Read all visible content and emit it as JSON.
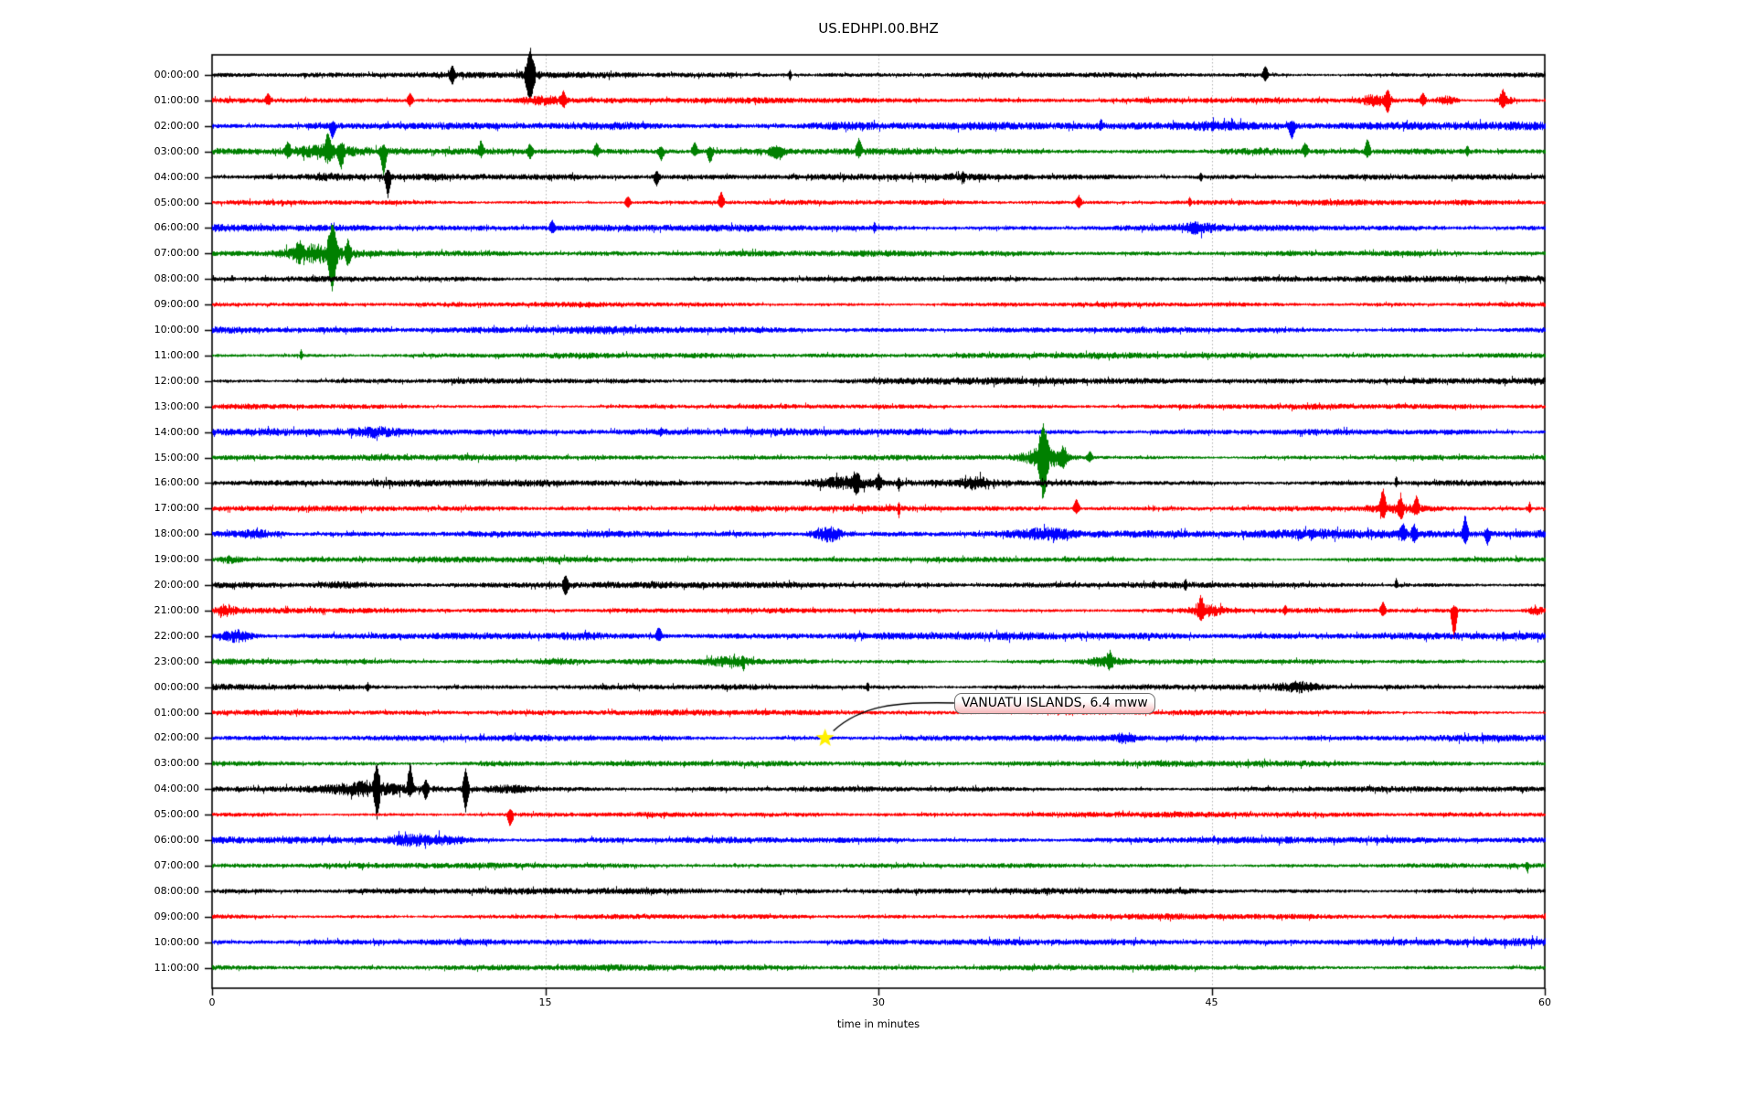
{
  "title": "US.EDHPI.00.BHZ",
  "axes": {
    "xlabel": "time in minutes",
    "x_ticks": [
      "0",
      "15",
      "30",
      "45",
      "60"
    ],
    "x_tick_minutes": [
      0,
      15,
      30,
      45,
      60
    ],
    "grid_minutes": [
      15,
      30,
      45
    ],
    "xlim": [
      0,
      60
    ]
  },
  "annotation": {
    "text": "VANUATU ISLANDS, 6.4 mww"
  },
  "colors": {
    "black": "#000000",
    "red": "#ff0000",
    "blue": "#0000ff",
    "green": "#008000",
    "grid": "#b0b0b0",
    "frame": "#000000",
    "star": "#fff000",
    "connector": "#000000",
    "annotation_border": "#6e6e6e",
    "annotation_fill_top": "#ffffff",
    "annotation_fill_bottom": "#f7b8ba"
  },
  "chart_data": {
    "type": "line",
    "kind": "seismogram-dayplot",
    "station": "US.EDHPI.00.BHZ",
    "title": "US.EDHPI.00.BHZ",
    "xlabel": "time in minutes",
    "xlim_minutes": [
      0,
      60
    ],
    "x_ticks": [
      0,
      15,
      30,
      45,
      60
    ],
    "grid": "vertical-dotted",
    "grid_minutes": [
      15,
      30,
      45
    ],
    "trace_color_cycle": [
      "black",
      "red",
      "blue",
      "green"
    ],
    "event_marker": {
      "label": "VANUATU ISLANDS, 6.4 mww",
      "row_index": 26,
      "row_label": "02:00:00",
      "minute": 27.6,
      "marker": "star",
      "color": "#fff000"
    },
    "rows": [
      {
        "label": "00:00:00",
        "color": "black",
        "base": 3.4,
        "bursts": [
          [
            14.3,
            0.5,
            3
          ]
        ],
        "spikes": [
          [
            10.8,
            8,
            8,
            2
          ],
          [
            14.3,
            22,
            27,
            3
          ],
          [
            26.0,
            5,
            5,
            1
          ],
          [
            47.4,
            9,
            6,
            2
          ]
        ]
      },
      {
        "label": "01:00:00",
        "color": "red",
        "base": 3.2,
        "bursts": [
          [
            14.9,
            1.0,
            4
          ],
          [
            52.3,
            0.6,
            5
          ],
          [
            55.6,
            0.4,
            4
          ],
          [
            58.2,
            0.4,
            4
          ]
        ],
        "spikes": [
          [
            2.5,
            6,
            4,
            2
          ],
          [
            8.9,
            7,
            5,
            2
          ],
          [
            15.8,
            8,
            6,
            2
          ],
          [
            52.9,
            10,
            13,
            2
          ],
          [
            54.5,
            7,
            5,
            2
          ],
          [
            58.1,
            9,
            7,
            2
          ]
        ]
      },
      {
        "label": "02:00:00",
        "color": "blue",
        "base": 4.6,
        "bursts": [
          [
            18.5,
            2.0,
            2
          ],
          [
            28.0,
            1.5,
            1.5
          ],
          [
            44.8,
            2.0,
            3
          ]
        ],
        "spikes": [
          [
            5.4,
            3,
            12,
            2
          ],
          [
            40.0,
            6,
            3,
            1
          ],
          [
            48.6,
            4,
            13,
            2
          ]
        ]
      },
      {
        "label": "03:00:00",
        "color": "green",
        "base": 3.8,
        "bursts": [
          [
            5.0,
            1.2,
            5
          ],
          [
            46.8,
            1.5,
            2
          ]
        ],
        "spikes": [
          [
            3.4,
            8,
            5,
            2
          ],
          [
            5.2,
            16,
            7,
            2
          ],
          [
            5.8,
            5,
            14,
            2
          ],
          [
            7.7,
            5,
            26,
            2
          ],
          [
            12.1,
            9,
            4,
            2
          ],
          [
            14.3,
            7,
            7,
            2
          ],
          [
            17.3,
            8,
            4,
            2
          ],
          [
            20.2,
            4,
            9,
            2
          ],
          [
            21.7,
            9,
            4,
            2
          ],
          [
            22.4,
            4,
            12,
            2
          ],
          [
            25.4,
            3,
            6,
            6
          ],
          [
            29.1,
            13,
            4,
            2
          ],
          [
            49.2,
            8,
            4,
            2
          ],
          [
            52.0,
            12,
            5,
            2
          ],
          [
            56.5,
            5,
            4,
            1
          ]
        ]
      },
      {
        "label": "04:00:00",
        "color": "black",
        "base": 3.6,
        "bursts": [
          [
            5.5,
            1.0,
            2
          ]
        ],
        "spikes": [
          [
            7.9,
            6,
            20,
            2
          ],
          [
            20.0,
            5,
            8,
            2
          ],
          [
            33.8,
            4,
            5,
            1
          ],
          [
            44.5,
            4,
            4,
            1
          ]
        ]
      },
      {
        "label": "05:00:00",
        "color": "red",
        "base": 3.2,
        "bursts": [],
        "spikes": [
          [
            18.7,
            6,
            5,
            2
          ],
          [
            22.9,
            11,
            5,
            2
          ],
          [
            39.0,
            7,
            5,
            2
          ],
          [
            44.0,
            4,
            4,
            1
          ]
        ]
      },
      {
        "label": "06:00:00",
        "color": "blue",
        "base": 4.2,
        "bursts": [
          [
            44.3,
            0.8,
            5
          ]
        ],
        "spikes": [
          [
            15.3,
            7,
            4,
            2
          ],
          [
            29.8,
            5,
            4,
            1
          ]
        ]
      },
      {
        "label": "07:00:00",
        "color": "green",
        "base": 3.4,
        "bursts": [
          [
            4.6,
            1.3,
            8
          ]
        ],
        "spikes": [
          [
            3.9,
            8,
            6,
            2
          ],
          [
            5.4,
            28,
            34,
            3
          ],
          [
            6.1,
            12,
            10,
            2
          ]
        ]
      },
      {
        "label": "08:00:00",
        "color": "black",
        "base": 3.5,
        "bursts": [],
        "spikes": []
      },
      {
        "label": "09:00:00",
        "color": "red",
        "base": 3.2,
        "bursts": [],
        "spikes": []
      },
      {
        "label": "10:00:00",
        "color": "blue",
        "base": 4.0,
        "bursts": [
          [
            17.0,
            1.5,
            1
          ]
        ],
        "spikes": []
      },
      {
        "label": "11:00:00",
        "color": "green",
        "base": 3.3,
        "bursts": [],
        "spikes": [
          [
            4.0,
            6,
            4,
            1
          ]
        ]
      },
      {
        "label": "12:00:00",
        "color": "black",
        "base": 3.6,
        "bursts": [
          [
            33.0,
            3.0,
            1
          ]
        ],
        "spikes": []
      },
      {
        "label": "13:00:00",
        "color": "red",
        "base": 3.2,
        "bursts": [],
        "spikes": []
      },
      {
        "label": "14:00:00",
        "color": "blue",
        "base": 4.0,
        "bursts": [
          [
            7.3,
            0.8,
            3
          ]
        ],
        "spikes": [
          [
            20.2,
            4,
            3,
            1
          ]
        ]
      },
      {
        "label": "15:00:00",
        "color": "green",
        "base": 3.3,
        "bursts": [
          [
            37.5,
            0.9,
            10
          ]
        ],
        "spikes": [
          [
            37.4,
            32,
            38,
            3
          ],
          [
            38.3,
            8,
            10,
            2
          ],
          [
            39.5,
            6,
            4,
            2
          ]
        ]
      },
      {
        "label": "16:00:00",
        "color": "black",
        "base": 3.8,
        "bursts": [
          [
            28.5,
            1.3,
            5
          ],
          [
            34.4,
            0.7,
            5
          ]
        ],
        "spikes": [
          [
            29.0,
            8,
            9,
            2
          ],
          [
            30.0,
            7,
            6,
            2
          ],
          [
            30.9,
            5,
            7,
            1
          ],
          [
            53.3,
            7,
            3,
            1
          ]
        ]
      },
      {
        "label": "17:00:00",
        "color": "red",
        "base": 3.2,
        "bursts": [
          [
            53.2,
            1.2,
            3
          ]
        ],
        "spikes": [
          [
            30.9,
            4,
            8,
            1
          ],
          [
            38.9,
            10,
            5,
            2
          ],
          [
            52.7,
            20,
            9,
            2
          ],
          [
            53.5,
            9,
            10,
            2
          ],
          [
            54.2,
            12,
            5,
            2
          ],
          [
            59.3,
            6,
            4,
            1
          ]
        ]
      },
      {
        "label": "18:00:00",
        "color": "blue",
        "base": 4.4,
        "bursts": [
          [
            2.0,
            1.0,
            3
          ],
          [
            27.7,
            0.7,
            8
          ],
          [
            37.5,
            1.2,
            4
          ],
          [
            50.5,
            3.5,
            3
          ]
        ],
        "spikes": [
          [
            53.6,
            9,
            5,
            2
          ],
          [
            54.1,
            8,
            6,
            2
          ],
          [
            56.4,
            19,
            9,
            2
          ],
          [
            57.4,
            4,
            10,
            2
          ]
        ]
      },
      {
        "label": "19:00:00",
        "color": "green",
        "base": 3.3,
        "bursts": [
          [
            0.8,
            0.5,
            3
          ]
        ],
        "spikes": []
      },
      {
        "label": "20:00:00",
        "color": "black",
        "base": 3.6,
        "bursts": [
          [
            5.7,
            1.0,
            2
          ]
        ],
        "spikes": [
          [
            15.9,
            9,
            10,
            2
          ],
          [
            43.8,
            5,
            5,
            1
          ],
          [
            53.3,
            7,
            3,
            1
          ]
        ]
      },
      {
        "label": "21:00:00",
        "color": "red",
        "base": 3.3,
        "bursts": [
          [
            0.6,
            0.4,
            4
          ],
          [
            44.8,
            0.8,
            5
          ],
          [
            59.6,
            0.4,
            4
          ]
        ],
        "spikes": [
          [
            44.5,
            12,
            6,
            2
          ],
          [
            48.3,
            6,
            4,
            1
          ],
          [
            52.7,
            8,
            5,
            2
          ],
          [
            55.9,
            4,
            32,
            2
          ]
        ]
      },
      {
        "label": "22:00:00",
        "color": "blue",
        "base": 4.2,
        "bursts": [
          [
            1.1,
            0.7,
            6
          ],
          [
            16.5,
            1.0,
            2
          ]
        ],
        "spikes": [
          [
            20.1,
            9,
            5,
            2
          ]
        ]
      },
      {
        "label": "23:00:00",
        "color": "green",
        "base": 3.3,
        "bursts": [
          [
            15.5,
            0.8,
            2
          ],
          [
            23.2,
            1.0,
            4
          ],
          [
            40.2,
            0.9,
            5
          ]
        ],
        "spikes": [
          [
            23.9,
            4,
            7,
            1
          ],
          [
            40.4,
            7,
            5,
            2
          ]
        ]
      },
      {
        "label": "00:00:00",
        "color": "black",
        "base": 3.6,
        "bursts": [
          [
            48.9,
            0.8,
            4
          ]
        ],
        "spikes": [
          [
            7.0,
            4,
            4,
            1
          ],
          [
            29.5,
            4,
            4,
            1
          ]
        ]
      },
      {
        "label": "01:00:00",
        "color": "red",
        "base": 3.2,
        "bursts": [],
        "spikes": []
      },
      {
        "label": "02:00:00",
        "color": "blue",
        "base": 4.0,
        "bursts": [
          [
            41.1,
            0.5,
            4
          ]
        ],
        "spikes": []
      },
      {
        "label": "03:00:00",
        "color": "green",
        "base": 3.3,
        "bursts": [
          [
            13.0,
            2.0,
            1
          ]
        ],
        "spikes": []
      },
      {
        "label": "04:00:00",
        "color": "black",
        "base": 3.6,
        "bursts": [
          [
            7.0,
            1.5,
            6
          ],
          [
            13.5,
            1.0,
            3
          ]
        ],
        "spikes": [
          [
            7.4,
            25,
            27,
            2
          ],
          [
            8.9,
            26,
            6,
            2
          ],
          [
            9.6,
            8,
            9,
            2
          ],
          [
            11.4,
            21,
            23,
            2
          ]
        ]
      },
      {
        "label": "05:00:00",
        "color": "red",
        "base": 3.2,
        "bursts": [],
        "spikes": [
          [
            13.4,
            4,
            12,
            2
          ]
        ]
      },
      {
        "label": "06:00:00",
        "color": "blue",
        "base": 4.2,
        "bursts": [
          [
            8.9,
            1.2,
            5
          ],
          [
            10.6,
            0.8,
            3
          ]
        ],
        "spikes": []
      },
      {
        "label": "07:00:00",
        "color": "green",
        "base": 3.2,
        "bursts": [],
        "spikes": [
          [
            59.2,
            3,
            7,
            1
          ]
        ]
      },
      {
        "label": "08:00:00",
        "color": "black",
        "base": 3.5,
        "bursts": [],
        "spikes": []
      },
      {
        "label": "09:00:00",
        "color": "red",
        "base": 3.2,
        "bursts": [],
        "spikes": []
      },
      {
        "label": "10:00:00",
        "color": "blue",
        "base": 4.0,
        "bursts": [],
        "spikes": []
      },
      {
        "label": "11:00:00",
        "color": "green",
        "base": 3.3,
        "bursts": [],
        "spikes": []
      }
    ]
  }
}
